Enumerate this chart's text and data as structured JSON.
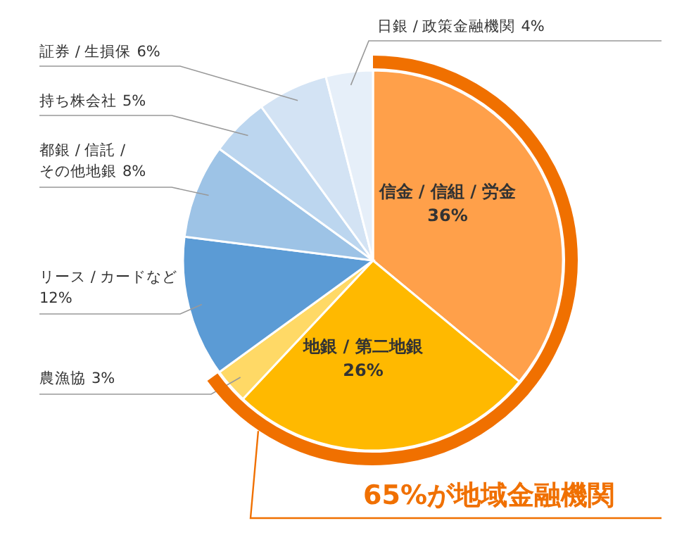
{
  "chart_data": {
    "type": "pie",
    "categories": [
      "信金 / 信組 / 労金",
      "地銀 / 第二地銀",
      "農漁協",
      "リース / カードなど",
      "都銀 / 信託 /\nその他地銀",
      "持ち株会社",
      "証券 / 生損保",
      "日銀 / 政策金融機関"
    ],
    "values": [
      36,
      26,
      3,
      12,
      8,
      5,
      6,
      4
    ],
    "colors": [
      "#ffa04a",
      "#ffb900",
      "#ffd966",
      "#5b9bd5",
      "#9dc3e6",
      "#bcd6ef",
      "#d3e3f4",
      "#e6eff9"
    ],
    "value_labels": [
      "36%",
      "26%",
      "3%",
      "12%",
      "8%",
      "5%",
      "6%",
      "4%"
    ],
    "annotations": [
      "65%が地域金融機関"
    ]
  }
}
